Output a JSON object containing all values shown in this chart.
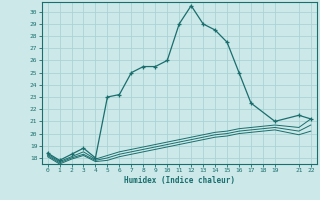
{
  "xlabel": "Humidex (Indice chaleur)",
  "bg_color": "#cce8e8",
  "grid_color": "#aad4d4",
  "line_color": "#1a6e6e",
  "ylim": [
    17.5,
    30.8
  ],
  "xlim": [
    -0.5,
    22.5
  ],
  "yticks": [
    18,
    19,
    20,
    21,
    22,
    23,
    24,
    25,
    26,
    27,
    28,
    29,
    30
  ],
  "xticks": [
    0,
    1,
    2,
    3,
    4,
    5,
    6,
    7,
    8,
    9,
    10,
    11,
    12,
    13,
    14,
    15,
    16,
    17,
    18,
    19,
    21,
    22
  ],
  "main_series": {
    "x": [
      0,
      1,
      2,
      3,
      4,
      5,
      6,
      7,
      8,
      9,
      10,
      11,
      12,
      13,
      14,
      15,
      16,
      17,
      19,
      21,
      22
    ],
    "y": [
      18.4,
      17.8,
      18.3,
      18.8,
      18.0,
      23.0,
      23.2,
      25.0,
      25.5,
      25.5,
      26.0,
      29.0,
      30.5,
      29.0,
      28.5,
      27.5,
      25.0,
      22.5,
      21.0,
      21.5,
      21.2
    ]
  },
  "flat_series": [
    {
      "x": [
        0,
        1,
        2,
        3,
        4,
        5,
        6,
        7,
        8,
        9,
        10,
        11,
        12,
        13,
        14,
        15,
        16,
        17,
        19,
        21,
        22
      ],
      "y": [
        18.3,
        17.7,
        18.1,
        18.5,
        17.9,
        18.2,
        18.5,
        18.7,
        18.9,
        19.1,
        19.3,
        19.5,
        19.7,
        19.9,
        20.1,
        20.2,
        20.4,
        20.5,
        20.7,
        20.5,
        21.2
      ]
    },
    {
      "x": [
        0,
        1,
        2,
        3,
        4,
        5,
        6,
        7,
        8,
        9,
        10,
        11,
        12,
        13,
        14,
        15,
        16,
        17,
        19,
        21,
        22
      ],
      "y": [
        18.2,
        17.6,
        18.0,
        18.3,
        17.8,
        18.0,
        18.3,
        18.5,
        18.7,
        18.9,
        19.1,
        19.3,
        19.5,
        19.7,
        19.9,
        20.0,
        20.2,
        20.3,
        20.5,
        20.2,
        20.7
      ]
    },
    {
      "x": [
        0,
        1,
        2,
        3,
        4,
        5,
        6,
        7,
        8,
        9,
        10,
        11,
        12,
        13,
        14,
        15,
        16,
        17,
        19,
        21,
        22
      ],
      "y": [
        18.1,
        17.5,
        17.9,
        18.2,
        17.7,
        17.8,
        18.1,
        18.3,
        18.5,
        18.7,
        18.9,
        19.1,
        19.3,
        19.5,
        19.7,
        19.8,
        20.0,
        20.1,
        20.3,
        19.9,
        20.2
      ]
    }
  ]
}
